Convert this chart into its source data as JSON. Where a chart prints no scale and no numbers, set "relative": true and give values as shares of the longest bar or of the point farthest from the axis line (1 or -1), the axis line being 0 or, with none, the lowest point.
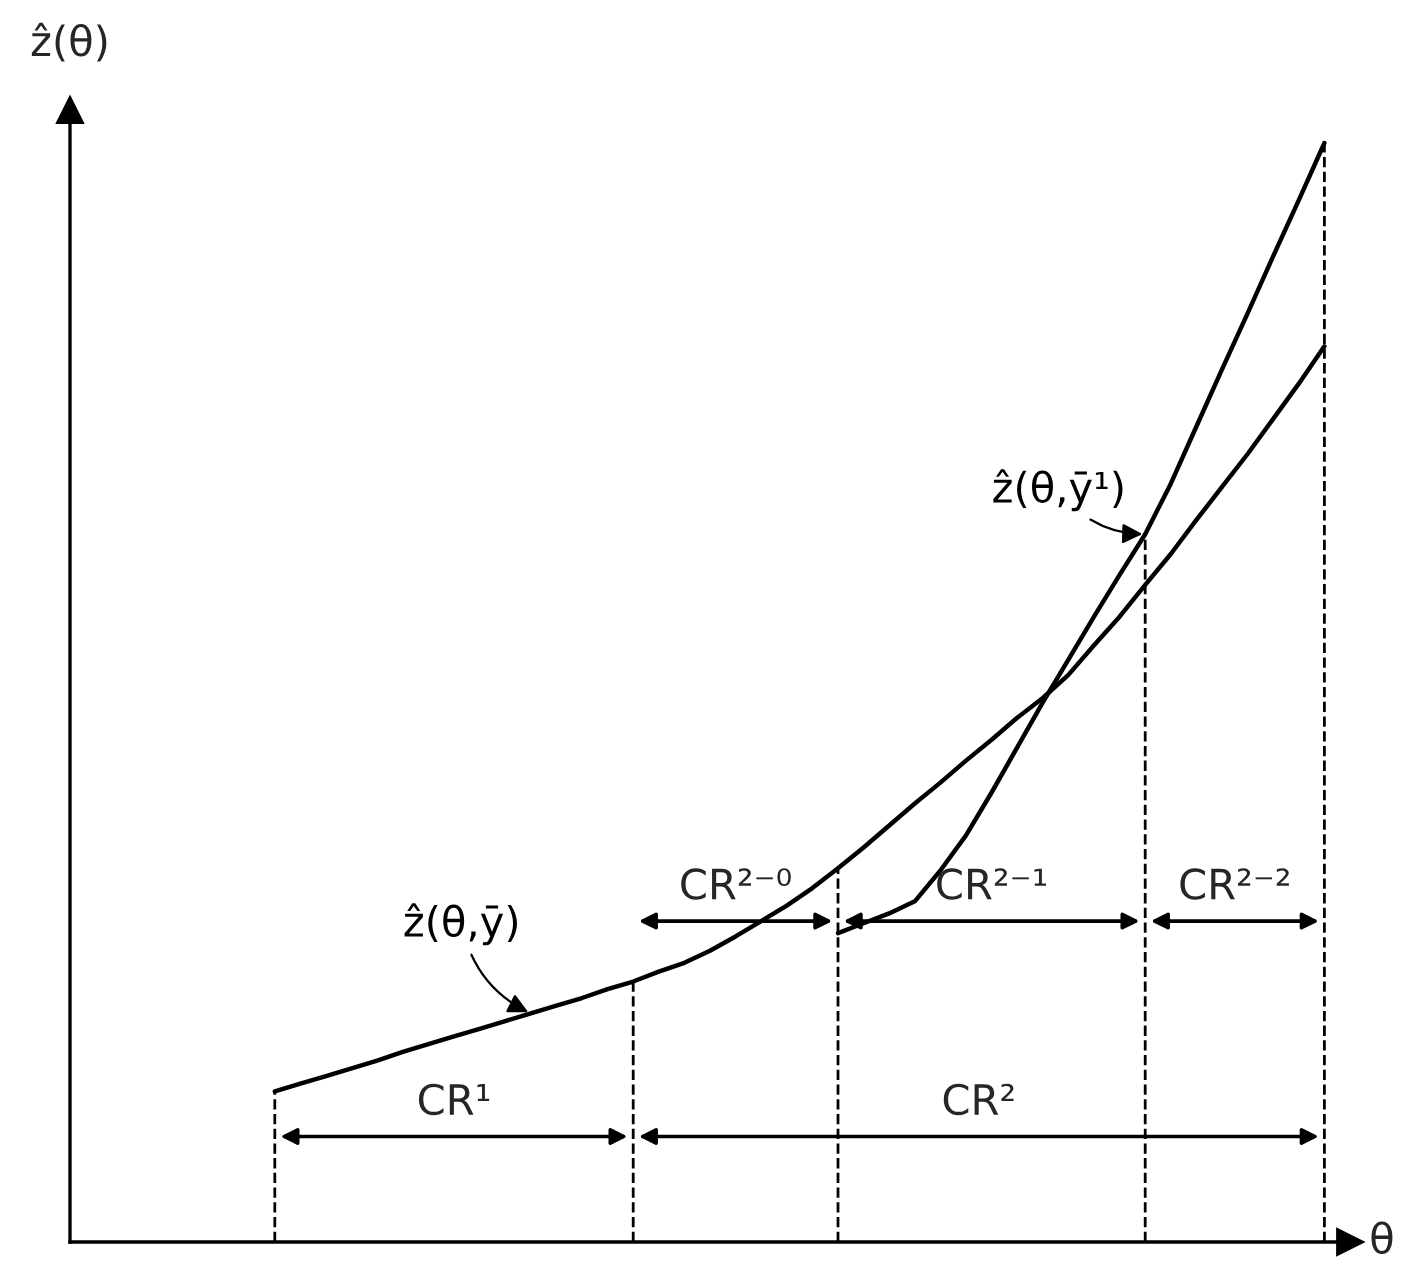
{
  "chart_data": {
    "type": "line",
    "relative": true,
    "ylabel": "ẑ(θ)",
    "xlabel": "θ",
    "categories": [
      null,
      null,
      null,
      null,
      null,
      null,
      null,
      null,
      null,
      null,
      null,
      null,
      null,
      null,
      null,
      null,
      null,
      null,
      null,
      null,
      null,
      null,
      null,
      null,
      null,
      null,
      null,
      null,
      null,
      null,
      null,
      null,
      null,
      null,
      null,
      null,
      null,
      null,
      null,
      null,
      null,
      null,
      null,
      null,
      null,
      null
    ],
    "series": [
      {
        "name": "ẑ(θ,ȳ)",
        "color": "#000000",
        "values": [
          null,
          null,
          null,
          null,
          0.137,
          0.144,
          0.151,
          0.158,
          0.165,
          0.173,
          0.18,
          0.187,
          0.194,
          0.201,
          0.208,
          0.215,
          0.222,
          0.23,
          0.237,
          0.246,
          0.254,
          0.265,
          0.278,
          0.292,
          0.306,
          0.322,
          0.34,
          0.359,
          0.379,
          0.399,
          0.418,
          0.438,
          0.457,
          0.477,
          0.495,
          0.516,
          0.543,
          0.569,
          0.598,
          0.626,
          0.657,
          0.687,
          0.717,
          0.749,
          0.781,
          0.815
        ]
      },
      {
        "name": "ẑ(θ,ȳ¹)",
        "color": "#000000",
        "values": [
          null,
          null,
          null,
          null,
          null,
          null,
          null,
          null,
          null,
          null,
          null,
          null,
          null,
          null,
          null,
          null,
          null,
          null,
          null,
          null,
          null,
          null,
          null,
          null,
          null,
          null,
          0.281,
          0.29,
          0.299,
          0.31,
          0.338,
          0.37,
          0.409,
          0.45,
          0.491,
          0.53,
          0.569,
          0.607,
          0.644,
          0.69,
          0.742,
          0.794,
          0.845,
          0.897,
          0.948,
          1
        ]
      }
    ],
    "annotations": [
      "CR¹",
      "CR²",
      "CR²⁻⁰",
      "CR²⁻¹",
      "CR²⁻²"
    ],
    "legend": false,
    "marker": "none",
    "line_style": "solid"
  }
}
